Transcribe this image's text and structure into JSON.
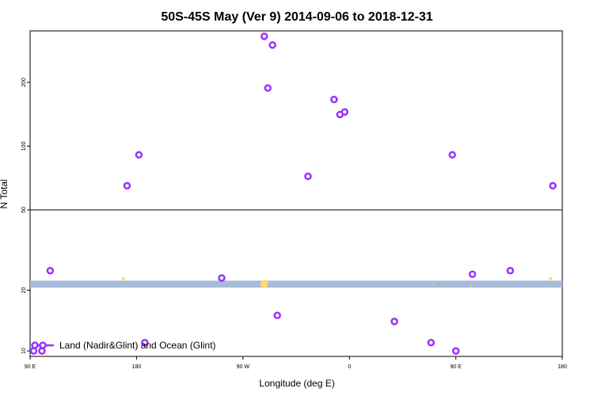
{
  "chart_data": {
    "type": "scatter",
    "title": "50S-45S May (Ver 9)   2014-09-06 to 2018-12-31",
    "xlabel": "Longitude (deg E)",
    "ylabel": "N Total",
    "x_ticks": [
      {
        "value": 90,
        "label": "90 E"
      },
      {
        "value": 180,
        "label": "180"
      },
      {
        "value": 270,
        "label": "90 W"
      },
      {
        "value": 360,
        "label": "0"
      },
      {
        "value": 450,
        "label": "90 E"
      },
      {
        "value": 540,
        "label": "180"
      }
    ],
    "xlim": [
      90,
      540
    ],
    "upper_panel": {
      "scale": "log",
      "ylim": [
        50,
        350
      ],
      "y_ticks": [
        {
          "value": 50,
          "label": "50"
        },
        {
          "value": 100,
          "label": "100"
        },
        {
          "value": 200,
          "label": "200"
        }
      ]
    },
    "lower_panel": {
      "scale": "log",
      "ylim": [
        9.4,
        50
      ],
      "y_ticks": [
        {
          "value": 10,
          "label": "10"
        },
        {
          "value": 20,
          "label": "20"
        }
      ]
    },
    "band": {
      "ymin": 20.6,
      "ymax": 22.3,
      "color": "#a7bbd9"
    },
    "series": [
      {
        "name": "Land (Nadir&Glint) and Ocean (Glint)",
        "color": "#9b30ff",
        "points": [
          {
            "x": 93,
            "y": 10
          },
          {
            "x": 100,
            "y": 10
          },
          {
            "x": 107,
            "y": 25
          },
          {
            "x": 172,
            "y": 65
          },
          {
            "x": 182,
            "y": 91
          },
          {
            "x": 187,
            "y": 11
          },
          {
            "x": 252,
            "y": 23
          },
          {
            "x": 288,
            "y": 330
          },
          {
            "x": 291,
            "y": 188
          },
          {
            "x": 295,
            "y": 300
          },
          {
            "x": 299,
            "y": 15
          },
          {
            "x": 325,
            "y": 72
          },
          {
            "x": 347,
            "y": 166
          },
          {
            "x": 352,
            "y": 141
          },
          {
            "x": 356,
            "y": 145
          },
          {
            "x": 398,
            "y": 14
          },
          {
            "x": 429,
            "y": 11
          },
          {
            "x": 464,
            "y": 24
          },
          {
            "x": 450,
            "y": 10
          },
          {
            "x": 447,
            "y": 91
          },
          {
            "x": 496,
            "y": 25
          },
          {
            "x": 532,
            "y": 65
          }
        ]
      },
      {
        "color": "#ffd966",
        "points": [
          {
            "x": 169,
            "y": 22.8,
            "r": 2
          },
          {
            "x": 288,
            "y": 21.5,
            "r": 5
          },
          {
            "x": 530,
            "y": 22.8,
            "r": 2
          },
          {
            "x": 430,
            "y": 21.4,
            "r": 1
          },
          {
            "x": 463,
            "y": 21.0,
            "r": 1
          }
        ]
      }
    ],
    "legend": {
      "position": "bottom-left",
      "label": "Land (Nadir&Glint) and Ocean (Glint)"
    }
  }
}
